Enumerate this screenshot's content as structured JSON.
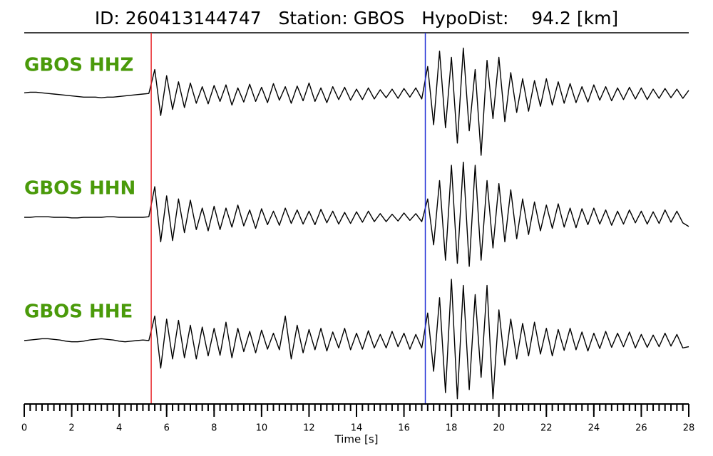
{
  "chart_data": {
    "type": "seismogram",
    "title": "ID: 260413144747   Station: GBOS   HypoDist:    94.2 [km]",
    "xlabel": "Time [s]",
    "xlim": [
      0,
      28
    ],
    "xticks": [
      0,
      2,
      4,
      6,
      8,
      10,
      12,
      14,
      16,
      18,
      20,
      22,
      24,
      26,
      28
    ],
    "minor_tick_interval": 0.25,
    "ylim": [
      -1,
      1
    ],
    "picks": [
      {
        "x": 5.35,
        "color": "#e8262a"
      },
      {
        "x": 16.9,
        "color": "#2432d6"
      }
    ],
    "label_color": "#4a9a0a",
    "x": [
      0,
      0.25,
      0.5,
      0.75,
      1,
      1.25,
      1.5,
      1.75,
      2,
      2.25,
      2.5,
      2.75,
      3,
      3.25,
      3.5,
      3.75,
      4,
      4.25,
      4.5,
      4.75,
      5,
      5.25,
      5.5,
      5.75,
      6,
      6.25,
      6.5,
      6.75,
      7,
      7.25,
      7.5,
      7.75,
      8,
      8.25,
      8.5,
      8.75,
      9,
      9.25,
      9.5,
      9.75,
      10,
      10.25,
      10.5,
      10.75,
      11,
      11.25,
      11.5,
      11.75,
      12,
      12.25,
      12.5,
      12.75,
      13,
      13.25,
      13.5,
      13.75,
      14,
      14.25,
      14.5,
      14.75,
      15,
      15.25,
      15.5,
      15.75,
      16,
      16.25,
      16.5,
      16.75,
      17,
      17.25,
      17.5,
      17.75,
      18,
      18.25,
      18.5,
      18.75,
      19,
      19.25,
      19.5,
      19.75,
      20,
      20.25,
      20.5,
      20.75,
      21,
      21.25,
      21.5,
      21.75,
      22,
      22.25,
      22.5,
      22.75,
      23,
      23.25,
      23.5,
      23.75,
      24,
      24.25,
      24.5,
      24.75,
      25,
      25.25,
      25.5,
      25.75,
      26,
      26.25,
      26.5,
      26.75,
      27,
      27.25,
      27.5,
      27.75,
      28
    ],
    "series": [
      {
        "name": "GBOS HHZ",
        "color": "#000000",
        "values": [
          0.02,
          0.03,
          0.03,
          0.02,
          0.01,
          0,
          -0.01,
          -0.02,
          -0.03,
          -0.04,
          -0.05,
          -0.05,
          -0.05,
          -0.06,
          -0.05,
          -0.05,
          -0.04,
          -0.03,
          -0.02,
          -0.01,
          0.0,
          0.01,
          0.4,
          -0.35,
          0.3,
          -0.25,
          0.2,
          -0.22,
          0.18,
          -0.15,
          0.12,
          -0.16,
          0.14,
          -0.12,
          0.15,
          -0.18,
          0.1,
          -0.13,
          0.16,
          -0.12,
          0.11,
          -0.14,
          0.17,
          -0.1,
          0.12,
          -0.15,
          0.13,
          -0.11,
          0.18,
          -0.12,
          0.1,
          -0.14,
          0.12,
          -0.09,
          0.11,
          -0.1,
          0.08,
          -0.09,
          0.1,
          -0.08,
          0.07,
          -0.06,
          0.08,
          -0.07,
          0.09,
          -0.05,
          0.1,
          -0.08,
          0.45,
          -0.5,
          0.7,
          -0.55,
          0.6,
          -0.8,
          0.75,
          -0.6,
          0.4,
          -1.0,
          0.55,
          -0.4,
          0.6,
          -0.45,
          0.35,
          -0.3,
          0.25,
          -0.28,
          0.22,
          -0.2,
          0.25,
          -0.18,
          0.2,
          -0.15,
          0.17,
          -0.14,
          0.12,
          -0.13,
          0.15,
          -0.1,
          0.12,
          -0.11,
          0.1,
          -0.09,
          0.11,
          -0.08,
          0.1,
          -0.09,
          0.08,
          -0.07,
          0.09,
          -0.06,
          0.08,
          -0.07,
          0.06
        ]
      },
      {
        "name": "GBOS HHN",
        "color": "#000000",
        "values": [
          0,
          0,
          0.01,
          0.01,
          0.01,
          0,
          0,
          0,
          -0.01,
          -0.01,
          0,
          0,
          0,
          0,
          0.01,
          0.01,
          0,
          0,
          0,
          0,
          0,
          0.01,
          0.5,
          -0.4,
          0.35,
          -0.38,
          0.3,
          -0.25,
          0.28,
          -0.2,
          0.15,
          -0.22,
          0.18,
          -0.2,
          0.15,
          -0.16,
          0.2,
          -0.14,
          0.12,
          -0.18,
          0.14,
          -0.12,
          0.1,
          -0.13,
          0.15,
          -0.1,
          0.12,
          -0.11,
          0.1,
          -0.12,
          0.13,
          -0.09,
          0.1,
          -0.11,
          0.08,
          -0.1,
          0.09,
          -0.08,
          0.1,
          -0.07,
          0.06,
          -0.07,
          0.05,
          -0.06,
          0.07,
          -0.05,
          0.06,
          -0.07,
          0.3,
          -0.45,
          0.6,
          -0.7,
          0.85,
          -0.75,
          0.9,
          -0.8,
          0.85,
          -0.7,
          0.6,
          -0.5,
          0.55,
          -0.4,
          0.45,
          -0.35,
          0.3,
          -0.28,
          0.25,
          -0.22,
          0.2,
          -0.18,
          0.22,
          -0.16,
          0.15,
          -0.17,
          0.14,
          -0.12,
          0.15,
          -0.11,
          0.12,
          -0.13,
          0.1,
          -0.11,
          0.12,
          -0.09,
          0.1,
          -0.11,
          0.09,
          -0.1,
          0.12,
          -0.08,
          0.1,
          -0.09,
          -0.15
        ]
      },
      {
        "name": "GBOS HHE",
        "color": "#000000",
        "values": [
          0,
          0.01,
          0.02,
          0.03,
          0.03,
          0.02,
          0.01,
          -0.01,
          -0.02,
          -0.02,
          -0.01,
          0.01,
          0.02,
          0.03,
          0.02,
          0.01,
          -0.01,
          -0.02,
          -0.01,
          0,
          0.01,
          0,
          0.4,
          -0.45,
          0.35,
          -0.3,
          0.33,
          -0.28,
          0.25,
          -0.3,
          0.22,
          -0.25,
          0.2,
          -0.24,
          0.3,
          -0.28,
          0.2,
          -0.18,
          0.15,
          -0.2,
          0.17,
          -0.14,
          0.12,
          -0.15,
          0.4,
          -0.3,
          0.25,
          -0.2,
          0.18,
          -0.15,
          0.2,
          -0.17,
          0.14,
          -0.12,
          0.2,
          -0.15,
          0.12,
          -0.14,
          0.16,
          -0.12,
          0.1,
          -0.12,
          0.15,
          -0.1,
          0.12,
          -0.14,
          0.1,
          -0.12,
          0.45,
          -0.5,
          0.7,
          -0.85,
          1.0,
          -0.95,
          0.9,
          -0.8,
          0.75,
          -0.6,
          0.9,
          -0.95,
          0.5,
          -0.4,
          0.35,
          -0.3,
          0.28,
          -0.25,
          0.3,
          -0.22,
          0.2,
          -0.25,
          0.18,
          -0.16,
          0.2,
          -0.15,
          0.14,
          -0.17,
          0.12,
          -0.13,
          0.15,
          -0.11,
          0.12,
          -0.1,
          0.14,
          -0.12,
          0.1,
          -0.11,
          0.09,
          -0.1,
          0.12,
          -0.09,
          0.1,
          -0.12,
          -0.1
        ]
      }
    ]
  }
}
